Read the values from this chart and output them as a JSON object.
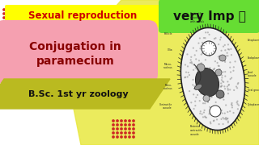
{
  "bg_color": "#ffffff",
  "yellow_diag_color": "#e8e840",
  "title_text": "Sexual reproduction",
  "title_color": "#cc0000",
  "title_bg": "#ffff00",
  "main_text_line1": "Conjugation in",
  "main_text_line2": "paramecium",
  "main_color": "#880000",
  "main_bg": "#f5a0b0",
  "sub_text": "B.Sc. 1st yr zoology",
  "sub_color": "#111111",
  "sub_bg": "#baba20",
  "badge_text": "very Imp",
  "badge_color": "#111111",
  "badge_bg": "#66dd33",
  "dot_color": "#cc2222",
  "param_body_color": "#ffffff",
  "param_border_color": "#222222",
  "param_stipple_color": "#555555"
}
